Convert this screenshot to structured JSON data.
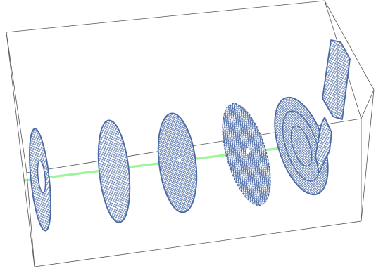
{
  "scene": {
    "background_color": "#ffffff",
    "box_edge_color": "#555555",
    "mesh_color": "#4a6aa5",
    "beam_color": "#9ef59a",
    "beam_inside_color": "#f07a86",
    "components": [
      {
        "kind": "annular-disc-icon"
      },
      {
        "kind": "mesh-disc-icon"
      },
      {
        "kind": "mesh-disc-icon"
      },
      {
        "kind": "scattered-mesh-disc-icon"
      },
      {
        "kind": "concentric-ring-disc-icon"
      },
      {
        "kind": "split-rectangular-plate-icon"
      }
    ]
  }
}
